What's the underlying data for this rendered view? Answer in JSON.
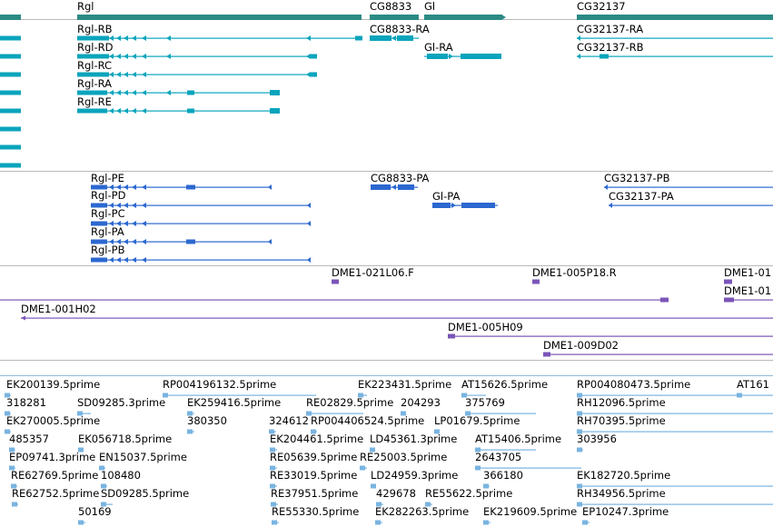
{
  "colors": {
    "gene": "#2b8a84",
    "transcript": "#0aa4bc",
    "protein": "#2c68d0",
    "clone": "#7b55b8",
    "est": "#79b4e0",
    "separator": "#b9b9b9"
  },
  "tracks": {
    "gene_track": {
      "genes": [
        {
          "label": "Rgl"
        },
        {
          "label": "CG8833"
        },
        {
          "label": "Gl"
        },
        {
          "label": "CG32137"
        }
      ]
    },
    "transcript_track": {
      "transcripts": [
        {
          "label": "Rgl-RB"
        },
        {
          "label": "Rgl-RD"
        },
        {
          "label": "Rgl-RC"
        },
        {
          "label": "Rgl-RA"
        },
        {
          "label": "Rgl-RE"
        },
        {
          "label": "CG8833-RA"
        },
        {
          "label": "Gl-RA"
        },
        {
          "label": "CG32137-RA"
        },
        {
          "label": "CG32137-RB"
        }
      ]
    },
    "protein_track": {
      "proteins": [
        {
          "label": "Rgl-PE"
        },
        {
          "label": "Rgl-PD"
        },
        {
          "label": "Rgl-PC"
        },
        {
          "label": "Rgl-PA"
        },
        {
          "label": "Rgl-PB"
        },
        {
          "label": "CG8833-PA"
        },
        {
          "label": "Gl-PA"
        },
        {
          "label": "CG32137-PB"
        },
        {
          "label": "CG32137-PA"
        }
      ]
    },
    "clone_track": {
      "clones": [
        {
          "label": "DME1-021L06.F"
        },
        {
          "label": "DME1-005P18.R"
        },
        {
          "label": "DME1-01"
        },
        {
          "label": "DME1-01"
        },
        {
          "label": "DME1-001H02"
        },
        {
          "label": "DME1-005H09"
        },
        {
          "label": "DME1-009D02"
        }
      ]
    },
    "est_track": {
      "ests": [
        {
          "label": "EK200139.5prime"
        },
        {
          "label": "RP004196132.5prime"
        },
        {
          "label": "EK223431.5prime"
        },
        {
          "label": "AT15626.5prime"
        },
        {
          "label": "RP004080473.5prime"
        },
        {
          "label": "AT161"
        },
        {
          "label": "318281"
        },
        {
          "label": "SD09285.3prime"
        },
        {
          "label": "EK259416.5prime"
        },
        {
          "label": "RE02829.5prime"
        },
        {
          "label": "204293"
        },
        {
          "label": "375769"
        },
        {
          "label": "RH12096.5prime"
        },
        {
          "label": "EK270005.5prime"
        },
        {
          "label": "380350"
        },
        {
          "label": "324612"
        },
        {
          "label": "RP004406524.5prime"
        },
        {
          "label": "LP01679.5prime"
        },
        {
          "label": "RH70395.5prime"
        },
        {
          "label": "485357"
        },
        {
          "label": "EK056718.5prime"
        },
        {
          "label": "EK204461.5prime"
        },
        {
          "label": "LD45361.3prime"
        },
        {
          "label": "AT15406.5prime"
        },
        {
          "label": "303956"
        },
        {
          "label": "EP09741.3prime"
        },
        {
          "label": "EN15037.5prime"
        },
        {
          "label": "RE05639.5prime"
        },
        {
          "label": "RE25003.5prime"
        },
        {
          "label": "2643705"
        },
        {
          "label": "RE62769.5prime"
        },
        {
          "label": "108480"
        },
        {
          "label": "RE33019.5prime"
        },
        {
          "label": "LD24959.3prime"
        },
        {
          "label": "366180"
        },
        {
          "label": "EK182720.5prime"
        },
        {
          "label": "RE62752.5prime"
        },
        {
          "label": "SD09285.5prime"
        },
        {
          "label": "RE37951.5prime"
        },
        {
          "label": "429678"
        },
        {
          "label": "RE55622.5prime"
        },
        {
          "label": "RH34956.5prime"
        },
        {
          "label": "50169"
        },
        {
          "label": "RE55330.5prime"
        },
        {
          "label": "EK282263.5prime"
        },
        {
          "label": "EK219609.5prime"
        },
        {
          "label": "EP10247.3prime"
        }
      ]
    }
  }
}
